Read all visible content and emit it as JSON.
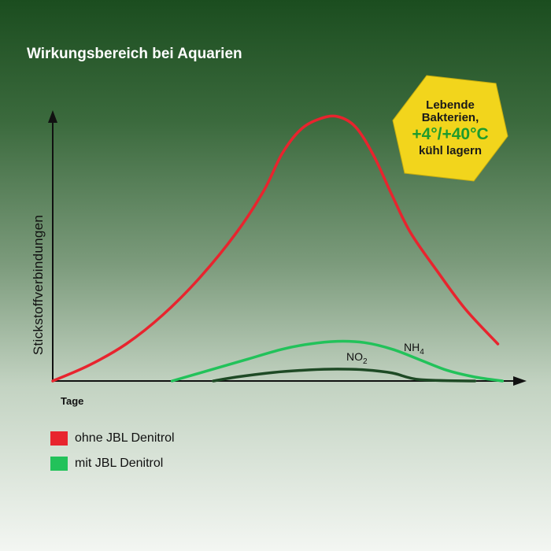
{
  "title": "Wirkungsbereich bei Aquarien",
  "badge": {
    "line1": "Lebende",
    "line2": "Bakterien,",
    "line3": "+4°/+40°C",
    "line4": "kühl lagern",
    "fill_color": "#f2d51c",
    "accent_color": "#1e9b2d"
  },
  "chart_data": {
    "type": "line",
    "title": "Wirkungsbereich bei Aquarien",
    "xlabel": "Tage",
    "ylabel": "Stickstoffverbindungen",
    "xlim": [
      0,
      100
    ],
    "ylim": [
      0,
      100
    ],
    "grid": false,
    "legend_position": "bottom-left",
    "series": [
      {
        "name": "ohne JBL Denitrol",
        "color": "#e8242e",
        "x": [
          0,
          8,
          16,
          24,
          32,
          40,
          46,
          50,
          54,
          58,
          62,
          66,
          70,
          74,
          78,
          84,
          90,
          97
        ],
        "y": [
          0,
          6,
          14,
          25,
          39,
          56,
          72,
          86,
          95,
          99,
          100,
          96,
          85,
          70,
          56,
          41,
          27,
          14
        ]
      },
      {
        "name": "mit JBL Denitrol",
        "color": "#22c25a",
        "x": [
          26,
          34,
          42,
          50,
          56,
          62,
          68,
          74,
          80,
          86,
          92,
          98
        ],
        "y": [
          0,
          4,
          8,
          12,
          14,
          15,
          14.5,
          12,
          8,
          4,
          1.5,
          0
        ]
      },
      {
        "color": "#1e4a25",
        "x": [
          35,
          40,
          48,
          56,
          62,
          68,
          74,
          80,
          92
        ],
        "y": [
          0,
          1.5,
          3.2,
          4.2,
          4.5,
          4.2,
          3,
          0.5,
          0
        ]
      }
    ],
    "annotations": [
      {
        "text": "NO",
        "subscript": "2",
        "x": 66,
        "y": 6.5
      },
      {
        "text": "NH",
        "subscript": "4",
        "x": 77,
        "y": 10.5
      }
    ]
  }
}
